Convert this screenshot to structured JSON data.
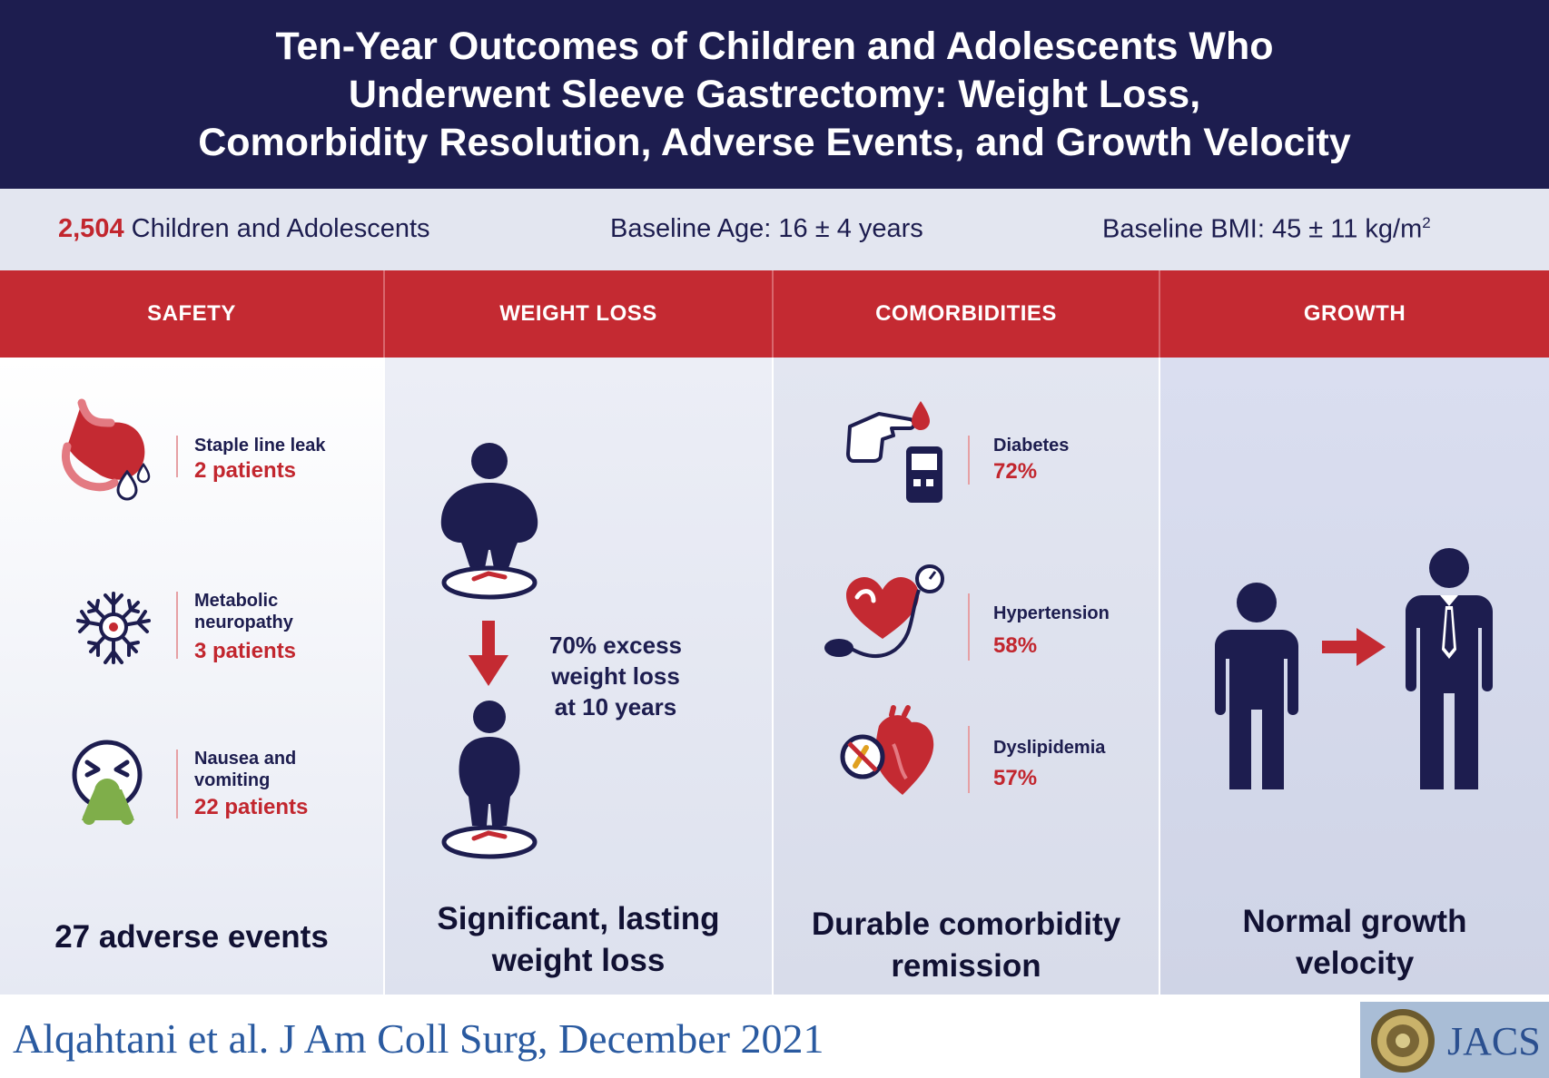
{
  "title": {
    "line1": "Ten-Year Outcomes of Children and Adolescents Who",
    "line2": "Underwent Sleeve Gastrectomy: Weight Loss,",
    "line3": "Comorbidity Resolution, Adverse Events, and Growth Velocity"
  },
  "stats": {
    "count": "2,504",
    "count_label": "Children and Adolescents",
    "age": "Baseline Age: 16 ± 4 years",
    "bmi": "Baseline BMI: 45 ± 11 kg/m",
    "bmi_sup": "2"
  },
  "sections": {
    "safety": "SAFETY",
    "weight": "WEIGHT LOSS",
    "comorb": "COMORBIDITIES",
    "growth": "GROWTH"
  },
  "safety": {
    "leak_label": "Staple line leak",
    "leak_value": "2 patients",
    "neuro_label1": "Metabolic",
    "neuro_label2": "neuropathy",
    "neuro_value": "3 patients",
    "nausea_label1": "Nausea and",
    "nausea_label2": "vomiting",
    "nausea_value": "22 patients",
    "summary": "27 adverse events"
  },
  "weight": {
    "stat1": "70% excess",
    "stat2": "weight loss",
    "stat3": "at 10 years",
    "summary1": "Significant, lasting",
    "summary2": "weight loss"
  },
  "comorb": {
    "diabetes_label": "Diabetes",
    "diabetes_value": "72%",
    "htn_label": "Hypertension",
    "htn_value": "58%",
    "lipid_label": "Dyslipidemia",
    "lipid_value": "57%",
    "summary1": "Durable comorbidity",
    "summary2": "remission"
  },
  "growth": {
    "summary1": "Normal growth",
    "summary2": "velocity"
  },
  "footer": {
    "citation": "Alqahtani et al. J Am Coll Surg, December 2021",
    "journal": "JACS"
  },
  "colors": {
    "navy": "#1d1d4f",
    "red": "#c42a32"
  }
}
